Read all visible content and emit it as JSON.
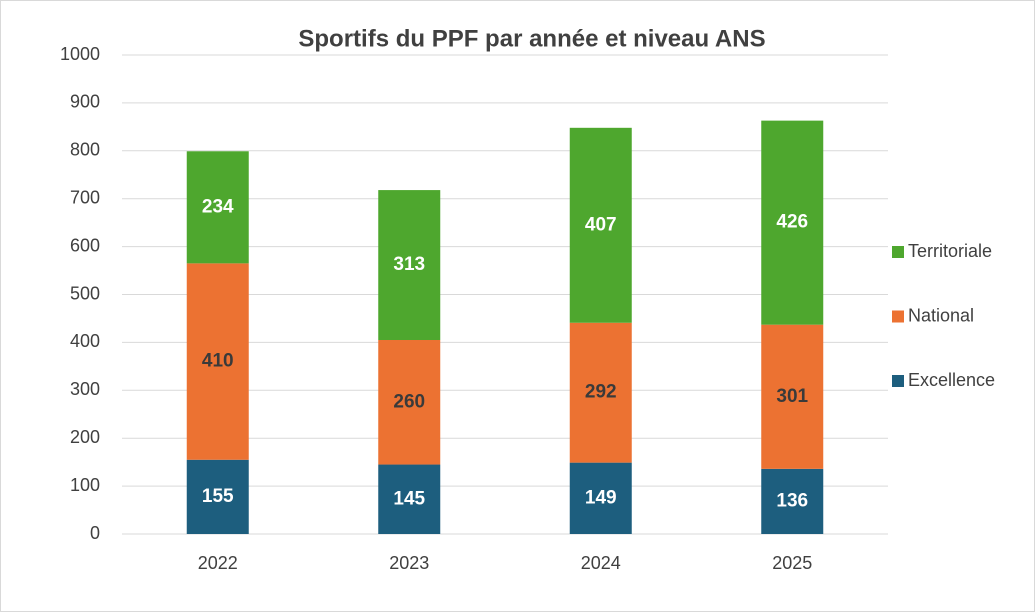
{
  "chart_data": {
    "type": "stacked_bar",
    "title": "Sportifs du PPF par année et niveau ANS",
    "categories": [
      "2022",
      "2023",
      "2024",
      "2025"
    ],
    "series": [
      {
        "name": "Excellence",
        "color": "#1d5e7e",
        "label_color": "#ffffff",
        "values": [
          155,
          145,
          149,
          136
        ]
      },
      {
        "name": "National",
        "color": "#ec7232",
        "label_color": "#3a3a3a",
        "values": [
          410,
          260,
          292,
          301
        ]
      },
      {
        "name": "Territoriale",
        "color": "#4ea72e",
        "label_color": "#ffffff",
        "values": [
          234,
          313,
          407,
          426
        ]
      }
    ],
    "ylim": [
      0,
      1000
    ],
    "yticks": [
      0,
      100,
      200,
      300,
      400,
      500,
      600,
      700,
      800,
      900,
      1000
    ],
    "grid": true,
    "legend": "right"
  }
}
